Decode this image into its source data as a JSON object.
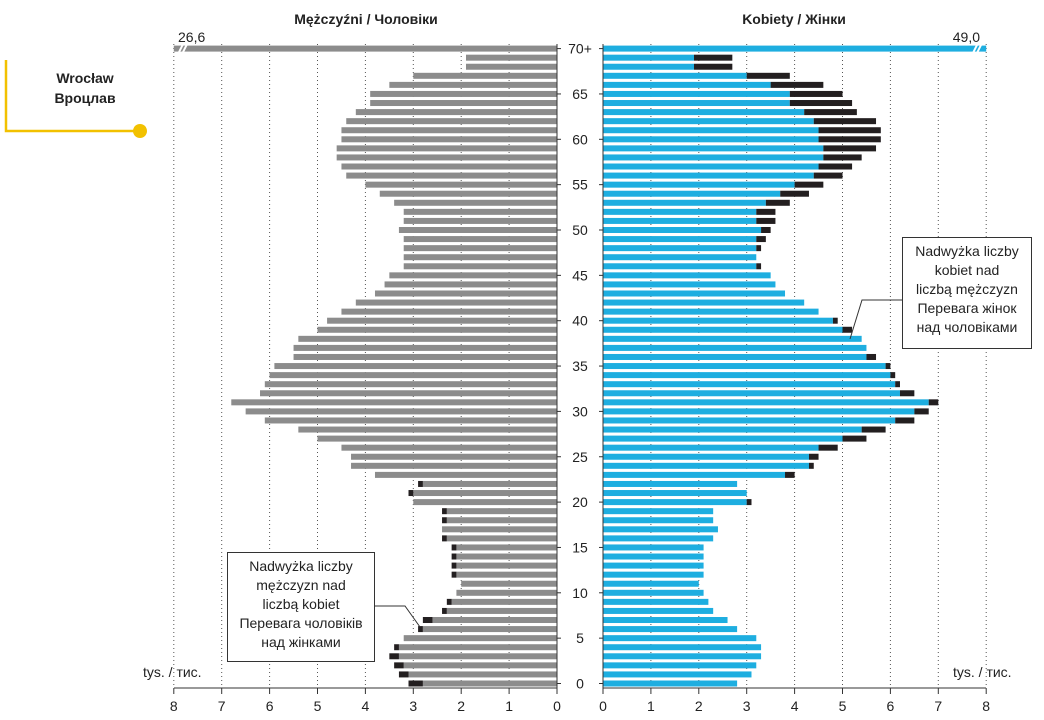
{
  "chart_data": {
    "type": "bar",
    "titles": {
      "left": "Mężczyźni / Чоловіки",
      "right": "Kobiety / Жінки"
    },
    "city": [
      "Wrocław",
      "Вроцлав"
    ],
    "unit_label": "tys. / тис.",
    "x_ticks": [
      0,
      1,
      2,
      3,
      4,
      5,
      6,
      7,
      8
    ],
    "xlim": [
      0,
      8
    ],
    "y_ticks": [
      0,
      5,
      10,
      15,
      20,
      25,
      30,
      35,
      40,
      45,
      50,
      55,
      60,
      65,
      "70+"
    ],
    "age_groups": [
      "0",
      "1",
      "2",
      "3",
      "4",
      "5",
      "6",
      "7",
      "8",
      "9",
      "10",
      "11",
      "12",
      "13",
      "14",
      "15",
      "16",
      "17",
      "18",
      "19",
      "20",
      "21",
      "22",
      "23",
      "24",
      "25",
      "26",
      "27",
      "28",
      "29",
      "30",
      "31",
      "32",
      "33",
      "34",
      "35",
      "36",
      "37",
      "38",
      "39",
      "40",
      "41",
      "42",
      "43",
      "44",
      "45",
      "46",
      "47",
      "48",
      "49",
      "50",
      "51",
      "52",
      "53",
      "54",
      "55",
      "56",
      "57",
      "58",
      "59",
      "60",
      "61",
      "62",
      "63",
      "64",
      "65",
      "66",
      "67",
      "68",
      "69",
      "70+"
    ],
    "top_group_values": {
      "men": "26,6",
      "women": "49,0"
    },
    "series": [
      {
        "name": "Mężczyźni / Чоловіки",
        "values": [
          3.1,
          3.3,
          3.4,
          3.5,
          3.4,
          3.2,
          2.9,
          2.8,
          2.4,
          2.3,
          2.1,
          2.0,
          2.2,
          2.2,
          2.2,
          2.2,
          2.4,
          2.4,
          2.4,
          2.4,
          3.0,
          3.1,
          2.9,
          3.8,
          4.3,
          4.3,
          4.5,
          5.0,
          5.4,
          6.1,
          6.5,
          6.8,
          6.2,
          6.1,
          6.0,
          5.9,
          5.5,
          5.5,
          5.4,
          5.0,
          4.8,
          4.5,
          4.2,
          3.8,
          3.6,
          3.5,
          3.2,
          3.2,
          3.2,
          3.2,
          3.3,
          3.2,
          3.2,
          3.4,
          3.7,
          4.0,
          4.4,
          4.5,
          4.6,
          4.6,
          4.5,
          4.5,
          4.4,
          4.2,
          3.9,
          3.9,
          3.5,
          3.0,
          1.9,
          1.9,
          26.6
        ]
      },
      {
        "name": "Kobiety / Жінки",
        "values": [
          2.8,
          3.1,
          3.2,
          3.3,
          3.3,
          3.2,
          2.8,
          2.6,
          2.3,
          2.2,
          2.1,
          2.0,
          2.1,
          2.1,
          2.1,
          2.1,
          2.3,
          2.4,
          2.3,
          2.3,
          3.1,
          3.0,
          2.8,
          4.0,
          4.4,
          4.5,
          4.9,
          5.5,
          5.9,
          6.5,
          6.8,
          7.0,
          6.5,
          6.2,
          6.1,
          6.0,
          5.7,
          5.5,
          5.4,
          5.2,
          4.9,
          4.5,
          4.2,
          3.8,
          3.6,
          3.5,
          3.3,
          3.2,
          3.3,
          3.4,
          3.5,
          3.6,
          3.6,
          3.9,
          4.3,
          4.6,
          5.0,
          5.2,
          5.4,
          5.7,
          5.8,
          5.8,
          5.7,
          5.3,
          5.2,
          5.0,
          4.6,
          3.9,
          2.7,
          2.7,
          49.0
        ]
      }
    ],
    "colors": {
      "men": "#8c8c8c",
      "women": "#1eaee0",
      "surplus": "#231f20",
      "accent": "#f2c100",
      "grid": "#555555"
    },
    "annotations": {
      "women_surplus": [
        "Nadwyżka liczby",
        "kobiet nad",
        "liczbą mężczyzn",
        "Перевага жінок",
        "над чоловіками"
      ],
      "men_surplus": [
        "Nadwyżka liczby",
        "mężczyzn nad",
        "liczbą kobiet",
        "Перевага чоловіків",
        "над жінками"
      ]
    }
  }
}
